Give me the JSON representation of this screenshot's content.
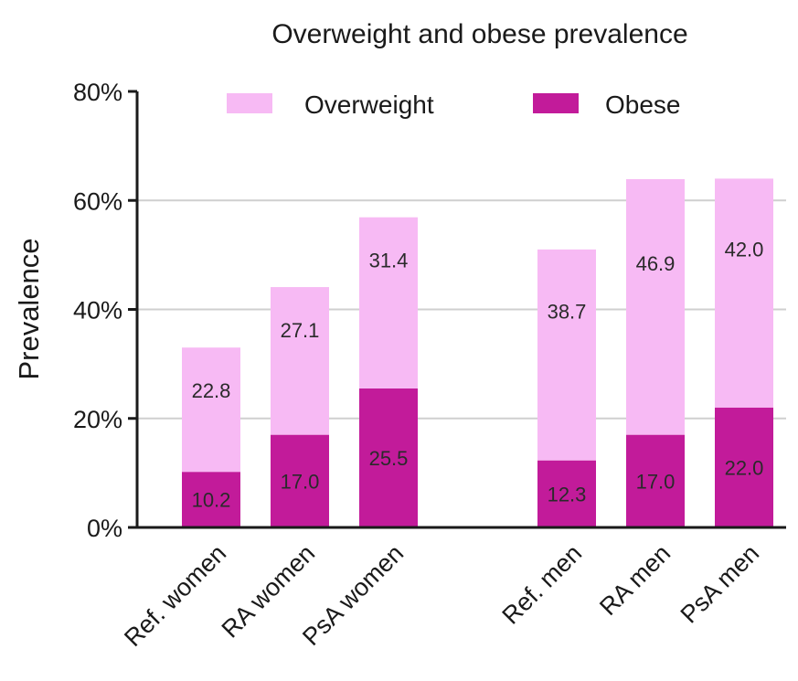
{
  "chart_data": {
    "type": "bar",
    "stacked": true,
    "title": "Overweight and obese prevalence",
    "xlabel": "",
    "ylabel": "Prevalence",
    "ylim": [
      0,
      80
    ],
    "yticks": [
      "0%",
      "20%",
      "40%",
      "60%",
      "80%"
    ],
    "grid": "horizontal",
    "legend_position": "top",
    "categories": [
      "Ref. women",
      "RA women",
      "PsA women",
      "Ref. men",
      "RA men",
      "PsA men"
    ],
    "series": [
      {
        "name": "Obese",
        "color": "#c21b9a",
        "values": [
          10.2,
          17.0,
          25.5,
          12.3,
          17.0,
          22.0
        ]
      },
      {
        "name": "Overweight",
        "color": "#f7baf4",
        "values": [
          22.8,
          27.1,
          31.4,
          38.7,
          46.9,
          42.0
        ]
      }
    ],
    "value_labels": {
      "Obese": [
        "10.2",
        "17.0",
        "25.5",
        "12.3",
        "17.0",
        "22.0"
      ],
      "Overweight": [
        "22.8",
        "27.1",
        "31.4",
        "38.7",
        "46.9",
        "42.0"
      ]
    }
  }
}
